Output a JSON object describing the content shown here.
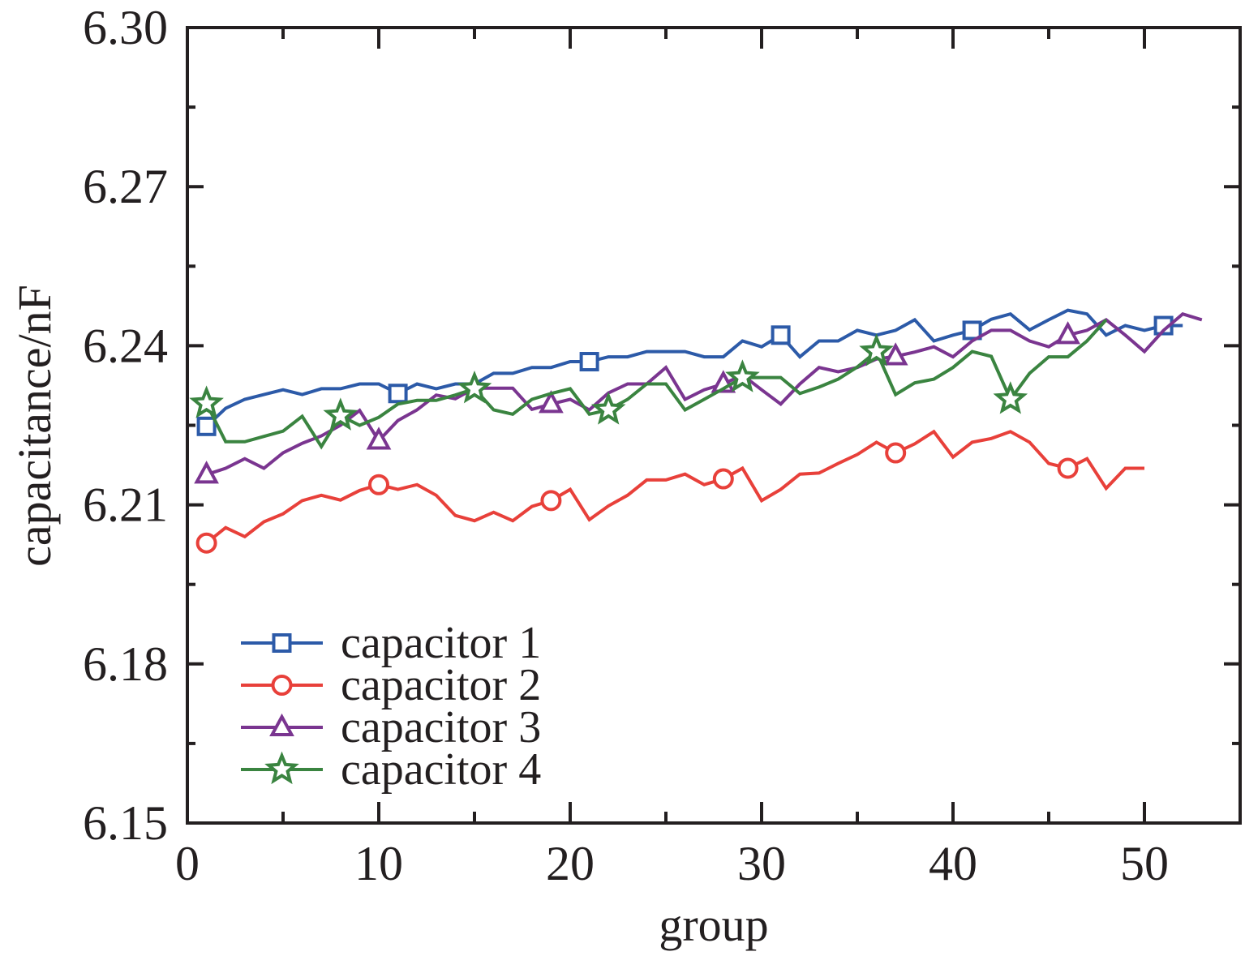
{
  "chart_data": {
    "type": "line",
    "title": "",
    "xlabel": "group",
    "ylabel": "capacitance/nF",
    "xlim": [
      0,
      55
    ],
    "ylim": [
      6.15,
      6.3
    ],
    "xticks": [
      0,
      10,
      20,
      30,
      40,
      50
    ],
    "xtick_labels": [
      "0",
      "10",
      "20",
      "30",
      "40",
      "50"
    ],
    "xminor_step": 5,
    "yticks": [
      6.15,
      6.18,
      6.21,
      6.24,
      6.27,
      6.3
    ],
    "ytick_labels": [
      "6.15",
      "6.18",
      "6.21",
      "6.24",
      "6.27",
      "6.30"
    ],
    "yminor_step": 0.015,
    "grid": false,
    "legend_position": "lower-left",
    "series": [
      {
        "name": "capacitor 1",
        "color": "#2c5aa8",
        "marker": "square",
        "marker_indices": [
          1,
          11,
          21,
          31,
          41,
          51
        ],
        "x": [
          1,
          2,
          3,
          4,
          5,
          6,
          7,
          8,
          9,
          10,
          11,
          12,
          13,
          14,
          15,
          16,
          17,
          18,
          19,
          20,
          21,
          22,
          23,
          24,
          25,
          26,
          27,
          28,
          29,
          30,
          31,
          32,
          33,
          34,
          35,
          36,
          37,
          38,
          39,
          40,
          41,
          42,
          43,
          44,
          45,
          46,
          47,
          48,
          49,
          50,
          51,
          52
        ],
        "values": [
          6.2248,
          6.2282,
          6.2299,
          6.2308,
          6.2317,
          6.2308,
          6.2319,
          6.2319,
          6.2328,
          6.2328,
          6.231,
          6.2328,
          6.2319,
          6.2328,
          6.2328,
          6.2348,
          6.2348,
          6.2359,
          6.2359,
          6.237,
          6.237,
          6.2379,
          6.2379,
          6.2389,
          6.2389,
          6.2389,
          6.2379,
          6.2379,
          6.2409,
          6.2398,
          6.242,
          6.2379,
          6.2409,
          6.2409,
          6.2429,
          6.242,
          6.2429,
          6.2449,
          6.2409,
          6.242,
          6.2429,
          6.245,
          6.246,
          6.243,
          6.2449,
          6.2467,
          6.246,
          6.242,
          6.2438,
          6.2429,
          6.2438,
          6.2438
        ]
      },
      {
        "name": "capacitor 2",
        "color": "#e8403a",
        "marker": "circle",
        "marker_indices": [
          1,
          10,
          19,
          28,
          37,
          46
        ],
        "x": [
          1,
          2,
          3,
          4,
          5,
          6,
          7,
          8,
          9,
          10,
          11,
          12,
          13,
          14,
          15,
          16,
          17,
          18,
          19,
          20,
          21,
          22,
          23,
          24,
          25,
          26,
          27,
          28,
          29,
          30,
          31,
          32,
          33,
          34,
          35,
          36,
          37,
          38,
          39,
          40,
          41,
          42,
          43,
          44,
          45,
          46,
          47,
          48,
          49,
          50
        ],
        "values": [
          6.2028,
          6.2057,
          6.204,
          6.2068,
          6.2083,
          6.2108,
          6.2118,
          6.2109,
          6.2127,
          6.2138,
          6.2129,
          6.2138,
          6.2118,
          6.208,
          6.207,
          6.2086,
          6.207,
          6.2097,
          6.2108,
          6.2129,
          6.2072,
          6.2098,
          6.2118,
          6.2147,
          6.2147,
          6.2158,
          6.2138,
          6.2149,
          6.2169,
          6.2108,
          6.2129,
          6.2158,
          6.216,
          6.2178,
          6.2195,
          6.2218,
          6.2198,
          6.2215,
          6.2238,
          6.219,
          6.2218,
          6.2225,
          6.2238,
          6.2218,
          6.2178,
          6.2169,
          6.2187,
          6.2131,
          6.2169,
          6.2169
        ]
      },
      {
        "name": "capacitor 3",
        "color": "#7a3590",
        "marker": "triangle",
        "marker_indices": [
          1,
          10,
          19,
          28,
          37,
          46
        ],
        "x": [
          1,
          2,
          3,
          4,
          5,
          6,
          7,
          8,
          9,
          10,
          11,
          12,
          13,
          14,
          15,
          16,
          17,
          18,
          19,
          20,
          21,
          22,
          23,
          24,
          25,
          26,
          27,
          28,
          29,
          30,
          31,
          32,
          33,
          34,
          35,
          36,
          37,
          38,
          39,
          40,
          41,
          42,
          43,
          44,
          45,
          46,
          47,
          48,
          49,
          50,
          51,
          52,
          53
        ],
        "values": [
          6.2157,
          6.2169,
          6.2187,
          6.2169,
          6.2198,
          6.2216,
          6.223,
          6.225,
          6.2278,
          6.2221,
          6.2259,
          6.2279,
          6.2307,
          6.23,
          6.232,
          6.232,
          6.232,
          6.228,
          6.229,
          6.2299,
          6.2279,
          6.2311,
          6.2328,
          6.2328,
          6.2359,
          6.2299,
          6.2317,
          6.2328,
          6.2345,
          6.2317,
          6.229,
          6.2328,
          6.2359,
          6.2351,
          6.2359,
          6.2375,
          6.238,
          6.2388,
          6.2398,
          6.2379,
          6.2409,
          6.2429,
          6.2429,
          6.2409,
          6.2398,
          6.242,
          6.2429,
          6.2449,
          6.242,
          6.2389,
          6.2429,
          6.246,
          6.2449
        ]
      },
      {
        "name": "capacitor 4",
        "color": "#3a8440",
        "marker": "star",
        "marker_indices": [
          1,
          8,
          15,
          22,
          29,
          36,
          43
        ],
        "x": [
          1,
          2,
          3,
          4,
          5,
          6,
          7,
          8,
          9,
          10,
          11,
          12,
          13,
          14,
          15,
          16,
          17,
          18,
          19,
          20,
          21,
          22,
          23,
          24,
          25,
          26,
          27,
          28,
          29,
          30,
          31,
          32,
          33,
          34,
          35,
          36,
          37,
          38,
          39,
          40,
          41,
          42,
          43,
          44,
          45,
          46,
          47,
          48
        ],
        "values": [
          6.2291,
          6.2219,
          6.2219,
          6.2229,
          6.2239,
          6.2267,
          6.221,
          6.2268,
          6.225,
          6.2265,
          6.229,
          6.2297,
          6.2297,
          6.2307,
          6.2319,
          6.2279,
          6.2271,
          6.2299,
          6.231,
          6.2319,
          6.2271,
          6.2279,
          6.2299,
          6.2328,
          6.2328,
          6.2279,
          6.2299,
          6.2319,
          6.234,
          6.234,
          6.234,
          6.231,
          6.2322,
          6.2337,
          6.236,
          6.2389,
          6.2308,
          6.233,
          6.2337,
          6.2359,
          6.2389,
          6.238,
          6.2299,
          6.2348,
          6.2379,
          6.2379,
          6.2409,
          6.2449
        ]
      }
    ]
  }
}
